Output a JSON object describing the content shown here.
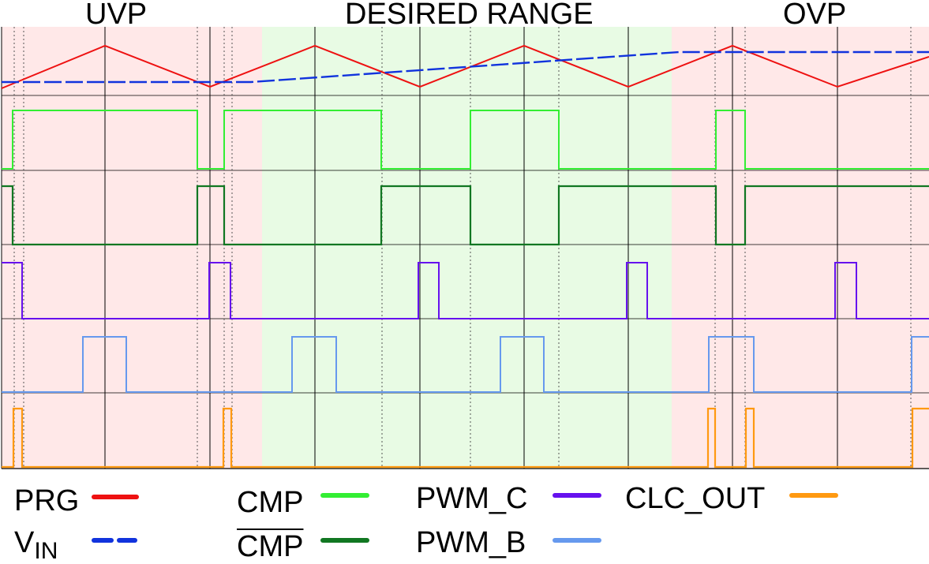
{
  "regions": {
    "uvp": "UVP",
    "desired": "DESIRED RANGE",
    "ovp": "OVP",
    "uvp_color": "#ffe8e8",
    "desired_color": "#e8fbe4",
    "ovp_color": "#ffe8e8"
  },
  "legend": {
    "prg": {
      "label": "PRG",
      "color": "#ee1111"
    },
    "vin": {
      "label_main": "V",
      "label_sub": "IN",
      "color": "#1133dd"
    },
    "cmp": {
      "label": "CMP",
      "color": "#33ee33"
    },
    "cmp_bar": {
      "label": "CMP",
      "color": "#117722"
    },
    "pwm_c": {
      "label": "PWM_C",
      "color": "#6611ee"
    },
    "pwm_b": {
      "label": "PWM_B",
      "color": "#6699ee"
    },
    "clc_out": {
      "label": "CLC_OUT",
      "color": "#ff9911"
    }
  }
}
